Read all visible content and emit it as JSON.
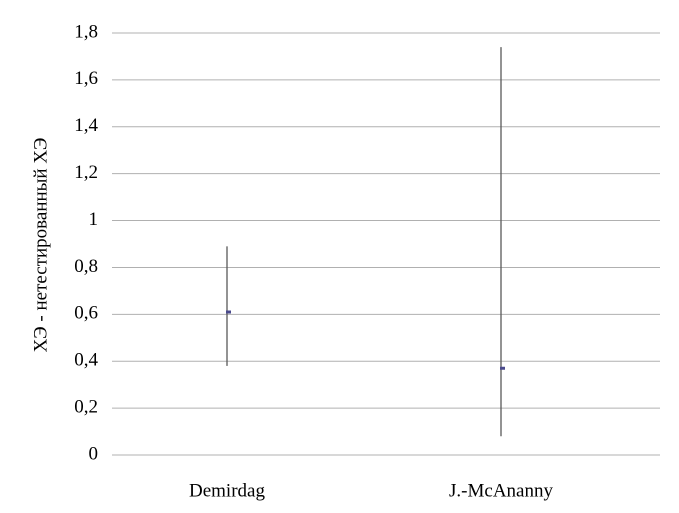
{
  "chart_data": {
    "type": "errorbar",
    "y_label": "ХЭ - нетестированный ХЭ",
    "categories": [
      "Demirdag",
      "J.-McAnanny"
    ],
    "series": [
      {
        "color": "#4a4a8c",
        "whisker_color": "#595959",
        "values": [
          0.61,
          0.37
        ],
        "low": [
          0.38,
          0.08
        ],
        "high": [
          0.89,
          1.74
        ]
      }
    ],
    "ylim": [
      0,
      1.8
    ],
    "yticks": [
      0,
      {
        "value": 0.2,
        "label": "0,2"
      },
      {
        "value": 0.4,
        "label": "0,4"
      },
      {
        "value": 0.6,
        "label": "0,6"
      },
      {
        "value": 0.8,
        "label": "0,8"
      },
      1,
      {
        "value": 1.2,
        "label": "1,2"
      },
      {
        "value": 1.4,
        "label": "1,4"
      },
      {
        "value": 1.6,
        "label": "1,6"
      },
      {
        "value": 1.8,
        "label": "1,8"
      }
    ],
    "grid": true
  }
}
